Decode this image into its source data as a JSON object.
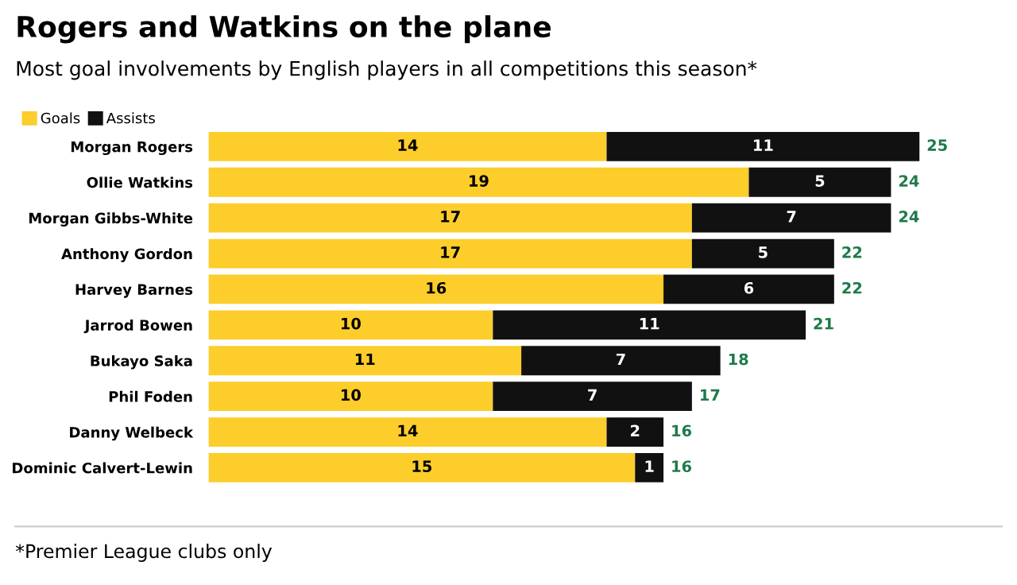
{
  "chart_data": {
    "type": "bar",
    "orientation": "horizontal",
    "stacked": true,
    "title": "Rogers and Watkins on the plane",
    "subtitle": "Most goal involvements by English players in all competitions this season*",
    "categories": [
      "Morgan Rogers",
      "Ollie Watkins",
      "Morgan Gibbs-White",
      "Anthony Gordon",
      "Harvey Barnes",
      "Jarrod Bowen",
      "Bukayo Saka",
      "Phil Foden",
      "Danny Welbeck",
      "Dominic Calvert-Lewin"
    ],
    "series": [
      {
        "name": "Goals",
        "color": "#fccd2b",
        "values": [
          14,
          19,
          17,
          17,
          16,
          10,
          11,
          10,
          14,
          15
        ]
      },
      {
        "name": "Assists",
        "color": "#111111",
        "values": [
          11,
          5,
          7,
          5,
          6,
          11,
          7,
          7,
          2,
          1
        ]
      }
    ],
    "totals": [
      "25",
      "24",
      "24",
      "22",
      "22",
      "21",
      "18",
      "17",
      "16",
      "16"
    ],
    "data_labels": true,
    "legend": "top left",
    "tick_labels": "y",
    "grid": false,
    "annotations": [
      "*Premier League clubs only"
    ]
  }
}
